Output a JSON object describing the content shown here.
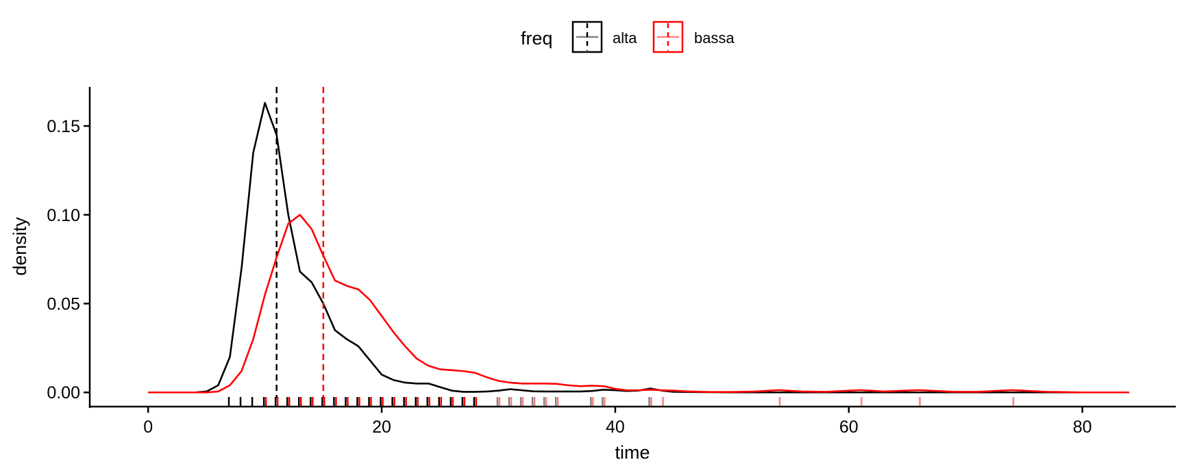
{
  "chart_data": {
    "type": "line",
    "subtype": "density",
    "title": "",
    "xlabel": "time",
    "ylabel": "density",
    "xlim": [
      -5,
      88
    ],
    "ylim": [
      -0.008,
      0.172
    ],
    "x_ticks": [
      0,
      20,
      40,
      60,
      80
    ],
    "y_ticks": [
      0,
      0.05,
      0.1,
      0.15
    ],
    "x_tick_labels": [
      "0",
      "20",
      "40",
      "60",
      "80"
    ],
    "y_tick_labels": [
      "0.00",
      "0.05",
      "0.10",
      "0.15"
    ],
    "grid": false,
    "legend": {
      "title": "freq",
      "position": "top"
    },
    "series": [
      {
        "name": "alta",
        "color": "#000000",
        "mean_line": 11,
        "points": [
          [
            0,
            0
          ],
          [
            4,
            0
          ],
          [
            5,
            0.0005
          ],
          [
            6,
            0.004
          ],
          [
            7,
            0.02
          ],
          [
            8,
            0.07
          ],
          [
            9,
            0.135
          ],
          [
            10,
            0.163
          ],
          [
            11,
            0.145
          ],
          [
            12,
            0.1
          ],
          [
            13,
            0.068
          ],
          [
            14,
            0.062
          ],
          [
            15,
            0.05
          ],
          [
            16,
            0.035
          ],
          [
            17,
            0.03
          ],
          [
            18,
            0.026
          ],
          [
            19,
            0.018
          ],
          [
            20,
            0.01
          ],
          [
            21,
            0.007
          ],
          [
            22,
            0.0055
          ],
          [
            23,
            0.005
          ],
          [
            24,
            0.005
          ],
          [
            25,
            0.003
          ],
          [
            26,
            0.001
          ],
          [
            27,
            0.0003
          ],
          [
            28,
            0.0003
          ],
          [
            29,
            0.0005
          ],
          [
            30,
            0.001
          ],
          [
            31,
            0.0018
          ],
          [
            32,
            0.0012
          ],
          [
            33,
            0.0006
          ],
          [
            34,
            0.0005
          ],
          [
            35,
            0.0005
          ],
          [
            36,
            0.0005
          ],
          [
            37,
            0.0005
          ],
          [
            38,
            0.0008
          ],
          [
            39,
            0.0015
          ],
          [
            40,
            0.0012
          ],
          [
            41,
            0.0008
          ],
          [
            42,
            0.001
          ],
          [
            43,
            0.0022
          ],
          [
            44,
            0.001
          ],
          [
            45,
            0.0003
          ],
          [
            50,
            0
          ],
          [
            84,
            0
          ]
        ],
        "rug": [
          7,
          8,
          9,
          10,
          11,
          12,
          13,
          14,
          15,
          16,
          17,
          18,
          19,
          20,
          21,
          22,
          23,
          24,
          25,
          26,
          27,
          28,
          30,
          31,
          32,
          33,
          34,
          35,
          38,
          39,
          43
        ]
      },
      {
        "name": "bassa",
        "color": "#ff0000",
        "mean_line": 15,
        "points": [
          [
            0,
            0
          ],
          [
            5,
            0
          ],
          [
            6,
            0.0005
          ],
          [
            7,
            0.004
          ],
          [
            8,
            0.012
          ],
          [
            9,
            0.03
          ],
          [
            10,
            0.055
          ],
          [
            11,
            0.076
          ],
          [
            12,
            0.095
          ],
          [
            13,
            0.1
          ],
          [
            14,
            0.092
          ],
          [
            15,
            0.077
          ],
          [
            16,
            0.063
          ],
          [
            17,
            0.06
          ],
          [
            18,
            0.058
          ],
          [
            19,
            0.052
          ],
          [
            20,
            0.043
          ],
          [
            21,
            0.034
          ],
          [
            22,
            0.026
          ],
          [
            23,
            0.019
          ],
          [
            24,
            0.015
          ],
          [
            25,
            0.013
          ],
          [
            26,
            0.0125
          ],
          [
            27,
            0.012
          ],
          [
            28,
            0.011
          ],
          [
            29,
            0.0085
          ],
          [
            30,
            0.0065
          ],
          [
            31,
            0.0055
          ],
          [
            32,
            0.005
          ],
          [
            33,
            0.005
          ],
          [
            34,
            0.005
          ],
          [
            35,
            0.0048
          ],
          [
            36,
            0.004
          ],
          [
            37,
            0.0035
          ],
          [
            38,
            0.0038
          ],
          [
            39,
            0.0035
          ],
          [
            40,
            0.002
          ],
          [
            41,
            0.0012
          ],
          [
            42,
            0.0012
          ],
          [
            43,
            0.0015
          ],
          [
            44,
            0.0012
          ],
          [
            45,
            0.001
          ],
          [
            46,
            0.0006
          ],
          [
            48,
            0.0002
          ],
          [
            50,
            0.0002
          ],
          [
            52,
            0.0005
          ],
          [
            54,
            0.0013
          ],
          [
            56,
            0.0005
          ],
          [
            58,
            0.0003
          ],
          [
            61,
            0.0013
          ],
          [
            63,
            0.0005
          ],
          [
            66,
            0.0013
          ],
          [
            69,
            0.0003
          ],
          [
            71,
            0.0003
          ],
          [
            74,
            0.0013
          ],
          [
            77,
            0.0003
          ],
          [
            80,
            0
          ],
          [
            84,
            0
          ]
        ],
        "rug": [
          10,
          11,
          12,
          13,
          14,
          15,
          16,
          17,
          18,
          19,
          20,
          21,
          22,
          23,
          24,
          25,
          26,
          27,
          28,
          30,
          31,
          32,
          33,
          34,
          35,
          38,
          39,
          43,
          44,
          54,
          61,
          66,
          74
        ]
      }
    ]
  }
}
